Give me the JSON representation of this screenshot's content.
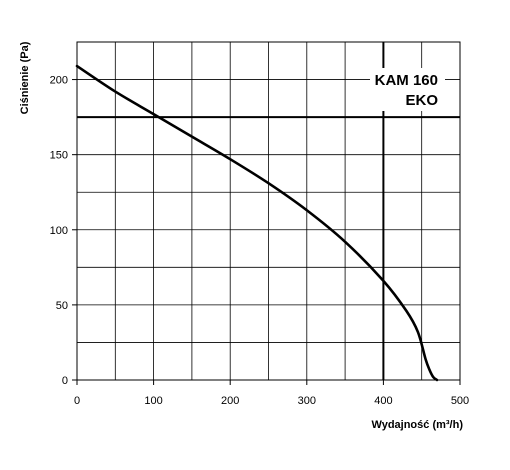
{
  "chart_data": {
    "type": "line",
    "title": "",
    "xlabel": "Wydajność (m³/h)",
    "ylabel": "Ciśnienie (Pa)",
    "xlim": [
      0,
      500
    ],
    "ylim": [
      0,
      225
    ],
    "grid": true,
    "x_ticks": [
      0,
      100,
      200,
      300,
      400,
      500
    ],
    "x_tick_labels": [
      "0",
      "100",
      "200",
      "300",
      "400",
      "500"
    ],
    "y_ticks": [
      0,
      50,
      100,
      150,
      200
    ],
    "y_tick_labels": [
      "0",
      "50",
      "100",
      "150",
      "200"
    ],
    "annotation": {
      "line1": "KAM 160",
      "line2": "EKO"
    },
    "series": [
      {
        "x": [
          0,
          50,
          100,
          150,
          200,
          250,
          300,
          350,
          400,
          430,
          445,
          455,
          460,
          465,
          470
        ],
        "y": [
          209,
          192,
          177,
          162,
          147,
          131,
          113,
          92,
          66,
          46,
          32,
          14,
          7,
          2,
          0
        ]
      }
    ]
  }
}
